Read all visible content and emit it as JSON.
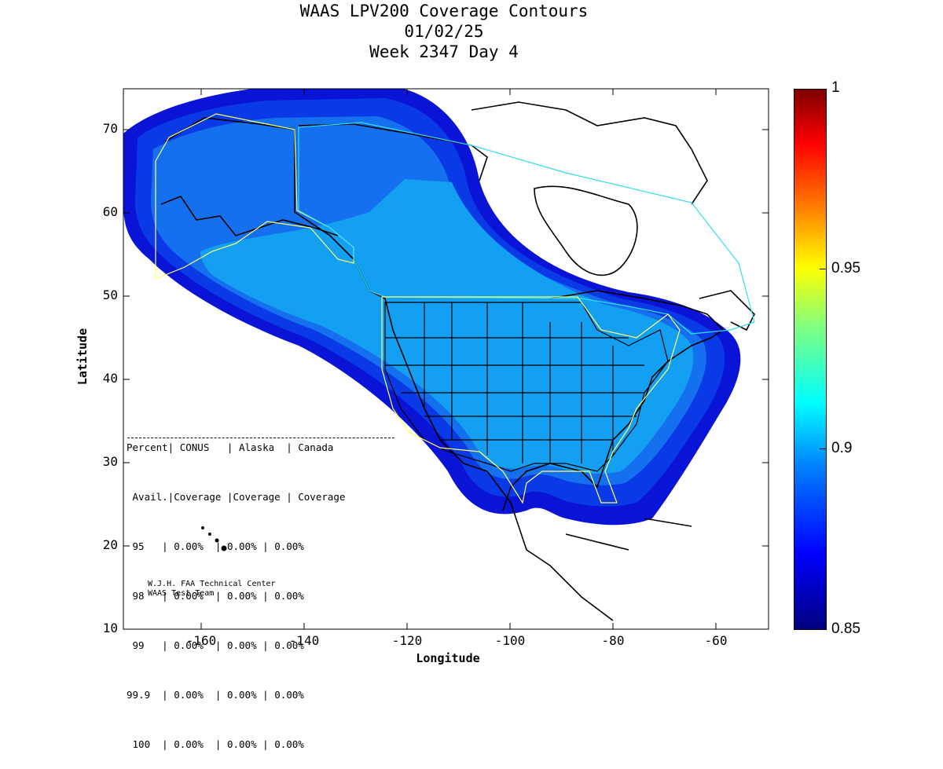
{
  "title": {
    "line1": "WAAS LPV200 Coverage Contours",
    "line2": "01/02/25",
    "line3": "Week 2347 Day 4"
  },
  "axes": {
    "xlabel": "Longitude",
    "ylabel": "Latitude",
    "xlim": [
      -175,
      -50
    ],
    "ylim": [
      10,
      75
    ],
    "xticks": [
      "-160",
      "-140",
      "-120",
      "-100",
      "-80",
      "-60"
    ],
    "yticks": [
      "10",
      "20",
      "30",
      "40",
      "50",
      "60",
      "70"
    ]
  },
  "colorbar": {
    "range": [
      0.85,
      1
    ],
    "ticks": [
      "1",
      "0.95",
      "0.9",
      "0.85"
    ],
    "colors": [
      "#00007f",
      "#0000ff",
      "#007fff",
      "#00ffff",
      "#ffff00",
      "#ff0000",
      "#7f0000"
    ]
  },
  "coverage_colors": {
    "outer": "#0a14d6",
    "mid": "#0a3ae6",
    "inner": "#1470ee",
    "core": "#14a0f2",
    "coastline": "#000000",
    "alaska_boundary": "#ffff66",
    "canada_boundary": "#33ddee"
  },
  "stats_table": {
    "header1": "Percent| CONUS   | Alaska  | Canada",
    "header2": " Avail.|Coverage |Coverage | Coverage",
    "rows": [
      {
        "pct": " 95  ",
        "conus": "0.00%",
        "alaska": "0.00%",
        "canada": "0.00%"
      },
      {
        "pct": " 98  ",
        "conus": "0.00%",
        "alaska": "0.00%",
        "canada": "0.00%"
      },
      {
        "pct": " 99  ",
        "conus": "0.00%",
        "alaska": "0.00%",
        "canada": "0.00%"
      },
      {
        "pct": "99.9 ",
        "conus": "0.00%",
        "alaska": "0.00%",
        "canada": "0.00%"
      },
      {
        "pct": " 100 ",
        "conus": "0.00%",
        "alaska": "0.00%",
        "canada": "0.00%"
      }
    ]
  },
  "credit": {
    "line1": "W.J.H. FAA Technical Center",
    "line2": "WAAS Test Team"
  }
}
